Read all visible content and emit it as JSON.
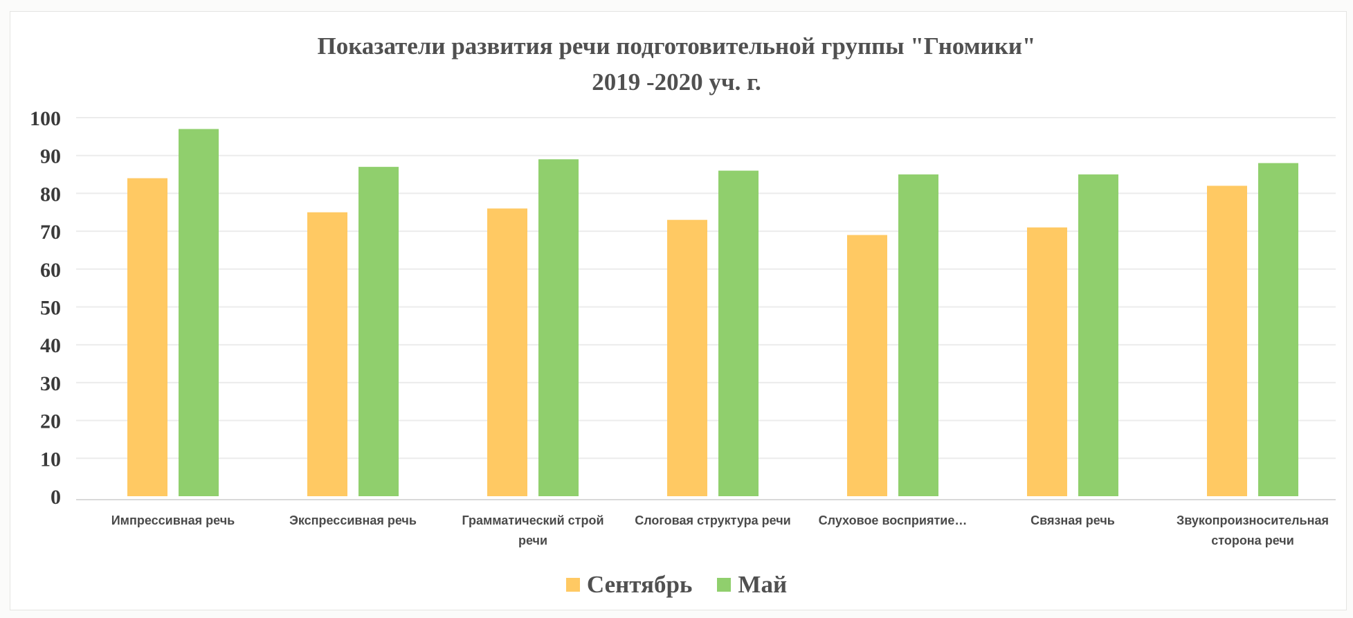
{
  "chart_data": {
    "type": "bar",
    "title_line1": "Показатели развития речи подготовительной группы \"Гномики\"",
    "title_line2": "2019 -2020 уч. г.",
    "xlabel": "",
    "ylabel": "",
    "ylim": [
      0,
      100
    ],
    "yticks": [
      "0",
      "10",
      "20",
      "30",
      "40",
      "50",
      "60",
      "70",
      "80",
      "90",
      "100"
    ],
    "grid": true,
    "legend_position": "bottom",
    "categories": [
      "Импрессивная речь",
      "Экспрессивная речь",
      "Грамматический строй речи",
      "Слоговая структура речи",
      "Слуховое восприятие…",
      "Связная речь",
      "Звукопроизносительная сторона речи"
    ],
    "series": [
      {
        "name": "Сентябрь",
        "color": "#ffc963",
        "values": [
          84,
          75,
          76,
          73,
          69,
          71,
          82
        ]
      },
      {
        "name": "Май",
        "color": "#90cf6d",
        "values": [
          97,
          87,
          89,
          86,
          85,
          85,
          88
        ]
      }
    ]
  }
}
